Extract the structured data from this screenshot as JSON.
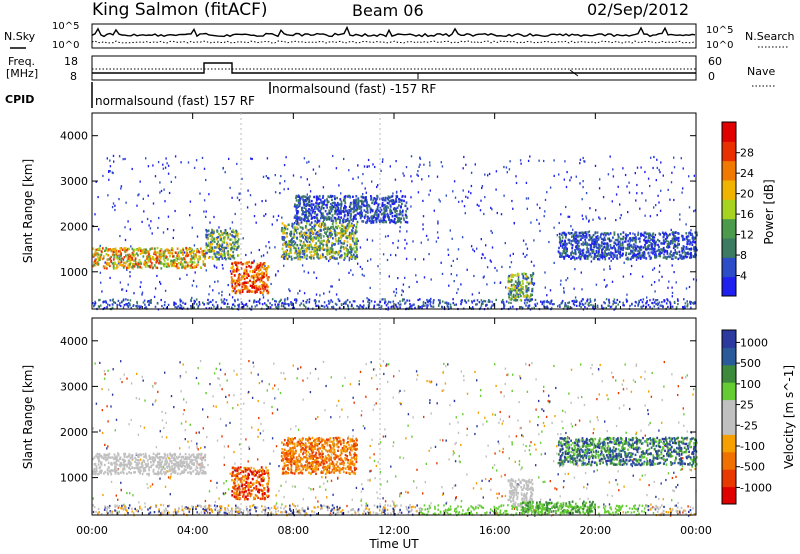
{
  "header": {
    "title": "King Salmon (fitACF)",
    "beam": "Beam 06",
    "date": "02/Sep/2012"
  },
  "noise_panel": {
    "left_label": "N.Sky",
    "right_label": "N.Search",
    "left_ticks": [
      "10^5",
      "10^0"
    ],
    "right_ticks": [
      "10^5",
      "10^0"
    ]
  },
  "freq_panel": {
    "left_label_1": "Freq.",
    "left_label_2": "[MHz]",
    "right_label": "Nave",
    "left_ticks": [
      "18",
      "8"
    ],
    "right_ticks": [
      "60",
      "0"
    ]
  },
  "cpid": {
    "label": "CPID",
    "segment_1": "normalsound (fast) 157 RF",
    "segment_2": "normalsound (fast) -157 RF"
  },
  "colors": {
    "power_scale": [
      "#1f1ff0",
      "#2c4cc8",
      "#3d7a62",
      "#4c9a4c",
      "#a6d320",
      "#f0b400",
      "#f07a00",
      "#e83000",
      "#e00000"
    ],
    "velocity_scale": [
      "#2c3aa0",
      "#2a5a9a",
      "#3d8a3d",
      "#66cc33",
      "#c0c0c0",
      "#c0c0c0",
      "#f5a000",
      "#f07000",
      "#e83a00",
      "#e00000"
    ]
  },
  "chart_data": [
    {
      "type": "heatmap",
      "name": "power",
      "xlabel": "Time UT",
      "ylabel": "Slant Range [km]",
      "x_ticks": [
        "00:00",
        "04:00",
        "08:00",
        "12:00",
        "16:00",
        "20:00",
        "00:00"
      ],
      "y_ticks": [
        "1000",
        "2000",
        "3000",
        "4000"
      ],
      "xlim_hours": [
        0,
        24
      ],
      "ylim_km": [
        180,
        4500
      ],
      "colorbar": {
        "label": "Power [dB]",
        "ticks": [
          "4",
          "8",
          "12",
          "16",
          "20",
          "24",
          "28"
        ]
      },
      "regions": [
        {
          "t": [
            0.0,
            4.5
          ],
          "r": [
            1100,
            1550
          ],
          "level": "strong"
        },
        {
          "t": [
            4.5,
            5.8
          ],
          "r": [
            1300,
            1950
          ],
          "level": "medium"
        },
        {
          "t": [
            5.5,
            7.0
          ],
          "r": [
            550,
            1250
          ],
          "level": "very-strong"
        },
        {
          "t": [
            7.5,
            10.5
          ],
          "r": [
            1300,
            2100
          ],
          "level": "medium"
        },
        {
          "t": [
            8.0,
            12.5
          ],
          "r": [
            2100,
            2700
          ],
          "level": "weak"
        },
        {
          "t": [
            16.5,
            17.5
          ],
          "r": [
            400,
            1000
          ],
          "level": "medium"
        },
        {
          "t": [
            18.5,
            24.0
          ],
          "r": [
            1300,
            1900
          ],
          "level": "weak"
        }
      ]
    },
    {
      "type": "heatmap",
      "name": "velocity",
      "xlabel": "Time UT",
      "ylabel": "Slant Range [km]",
      "x_ticks": [
        "00:00",
        "04:00",
        "08:00",
        "12:00",
        "16:00",
        "20:00",
        "00:00"
      ],
      "y_ticks": [
        "1000",
        "2000",
        "3000",
        "4000"
      ],
      "xlim_hours": [
        0,
        24
      ],
      "ylim_km": [
        180,
        4500
      ],
      "colorbar": {
        "label": "Velocity [m s^-1]",
        "ticks": [
          "1000",
          "500",
          "100",
          "25",
          "-25",
          "-100",
          "-500",
          "-1000"
        ]
      },
      "regions": [
        {
          "t": [
            0.0,
            4.5
          ],
          "r": [
            1100,
            1550
          ],
          "level": "near-zero"
        },
        {
          "t": [
            5.5,
            7.0
          ],
          "r": [
            550,
            1250
          ],
          "level": "negative-strong"
        },
        {
          "t": [
            7.5,
            10.5
          ],
          "r": [
            1100,
            1900
          ],
          "level": "negative"
        },
        {
          "t": [
            16.5,
            17.5
          ],
          "r": [
            400,
            1000
          ],
          "level": "near-zero"
        },
        {
          "t": [
            17.0,
            20.0
          ],
          "r": [
            250,
            500
          ],
          "level": "positive-low"
        },
        {
          "t": [
            18.5,
            24.0
          ],
          "r": [
            1300,
            1900
          ],
          "level": "positive"
        }
      ]
    }
  ]
}
